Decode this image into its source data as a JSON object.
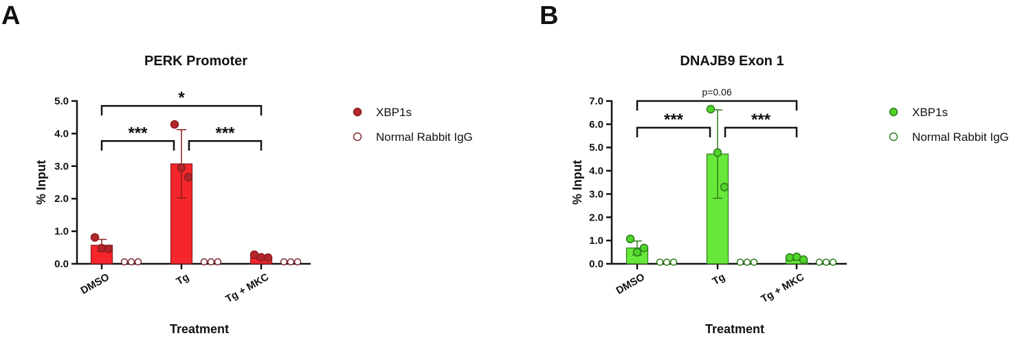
{
  "chart_data": [
    {
      "type": "bar",
      "panel_label": "A",
      "title": "PERK Promoter",
      "xlabel": "Treatment",
      "ylabel": "% Input",
      "ylim": [
        0,
        5.0
      ],
      "ytick_labels": [
        "0.0",
        "1.0",
        "2.0",
        "3.0",
        "4.0",
        "5.0"
      ],
      "categories": [
        "DMSO",
        "Tg",
        "Tg + MKC"
      ],
      "colors": {
        "bar": "#f5262b",
        "point": "#b3262b",
        "edge": "#8a1c1f",
        "hollow_edge": "#7a2a2e"
      },
      "series": [
        {
          "name": "XBP1s",
          "style": "filled-bar",
          "values": [
            0.57,
            3.07,
            0.2
          ],
          "errors": [
            0.18,
            1.05,
            0.06
          ],
          "points": [
            [
              0.81,
              0.48,
              0.46
            ],
            [
              4.28,
              2.95,
              2.66
            ],
            [
              0.28,
              0.2,
              0.19
            ]
          ]
        },
        {
          "name": "Normal Rabbit IgG",
          "style": "hollow-points",
          "values": [
            0.04,
            0.04,
            0.04
          ],
          "errors": [
            0,
            0,
            0
          ],
          "points": [
            [
              0.04,
              0.04,
              0.04
            ],
            [
              0.04,
              0.04,
              0.04
            ],
            [
              0.04,
              0.04,
              0.04
            ]
          ]
        }
      ],
      "significance": [
        {
          "from": 0,
          "to": 1,
          "label": "***",
          "y": 3.77
        },
        {
          "from": 1,
          "to": 2,
          "label": "***",
          "y": 3.77
        },
        {
          "from": 0,
          "to": 2,
          "label": "*",
          "y": 4.85
        }
      ],
      "legend_position": "right"
    },
    {
      "type": "bar",
      "panel_label": "B",
      "title": "DNAJB9 Exon 1",
      "xlabel": "Treatment",
      "ylabel": "% Input",
      "ylim": [
        0,
        7.0
      ],
      "ytick_labels": [
        "0.0",
        "1.0",
        "2.0",
        "3.0",
        "4.0",
        "5.0",
        "6.0",
        "7.0"
      ],
      "categories": [
        "DMSO",
        "Tg",
        "Tg + MKC"
      ],
      "colors": {
        "bar": "#67e83a",
        "point": "#4fd42a",
        "edge": "#2f7a1d",
        "hollow_edge": "#2f7a1d"
      },
      "series": [
        {
          "name": "XBP1s",
          "style": "filled-bar",
          "values": [
            0.68,
            4.72,
            0.22
          ],
          "errors": [
            0.3,
            1.9,
            0.07
          ],
          "points": [
            [
              1.07,
              0.5,
              0.68
            ],
            [
              6.65,
              4.78,
              3.3
            ],
            [
              0.27,
              0.3,
              0.18
            ]
          ]
        },
        {
          "name": "Normal Rabbit IgG",
          "style": "hollow-points",
          "values": [
            0.04,
            0.04,
            0.04
          ],
          "errors": [
            0,
            0,
            0
          ],
          "points": [
            [
              0.04,
              0.04,
              0.04
            ],
            [
              0.04,
              0.04,
              0.04
            ],
            [
              0.04,
              0.04,
              0.04
            ]
          ]
        }
      ],
      "significance": [
        {
          "from": 0,
          "to": 1,
          "label": "***",
          "y": 5.85
        },
        {
          "from": 1,
          "to": 2,
          "label": "***",
          "y": 5.85
        },
        {
          "from": 0,
          "to": 2,
          "label": "p=0.06",
          "y": 7.0
        }
      ],
      "legend_position": "right"
    }
  ]
}
